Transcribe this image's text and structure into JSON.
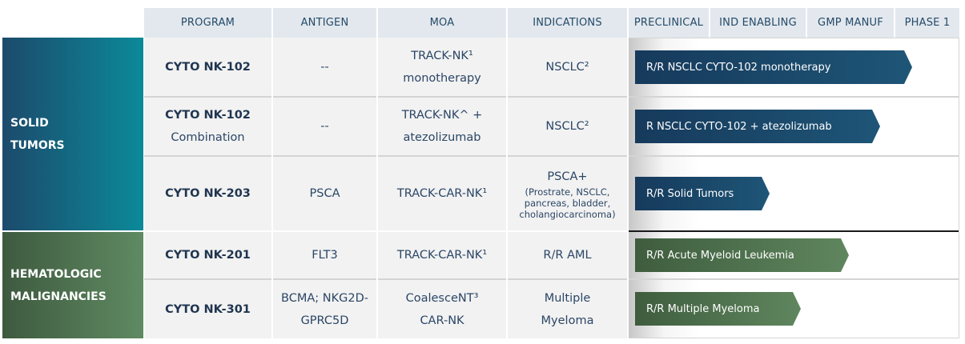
{
  "headers": {
    "program": "PROGRAM",
    "antigen": "ANTIGEN",
    "moa": "MOA",
    "indications": "INDICATIONS",
    "preclinical": "PRECLINICAL",
    "ind_enabling": "IND ENABLING",
    "gmp_manuf": "GMP MANUF",
    "phase1": "PHASE 1"
  },
  "groups": {
    "solid": [
      "SOLID",
      "TUMORS"
    ],
    "heme": [
      "HEMATOLOGIC",
      "MALIGNANCIES"
    ]
  },
  "rows": [
    {
      "program": "CYTO NK-102",
      "program_sub": "",
      "antigen": "--",
      "moa": [
        "TRACK-NK¹",
        "monotherapy"
      ],
      "indication": "NSCLC²",
      "indication_sub": "",
      "bar": "R/R NSCLC CYTO-102 monotherapy"
    },
    {
      "program": "CYTO NK-102",
      "program_sub": "Combination",
      "antigen": "--",
      "moa": [
        "TRACK-NK^ +",
        "atezolizumab"
      ],
      "indication": "NSCLC²",
      "indication_sub": "",
      "bar": "R NSCLC CYTO-102 + atezolizumab"
    },
    {
      "program": "CYTO NK-203",
      "program_sub": "",
      "antigen": "PSCA",
      "moa": [
        "TRACK-CAR-NK¹"
      ],
      "indication": "PSCA+",
      "indication_sub": "(Prostrate, NSCLC, pancreas, bladder, cholangiocarcinoma)",
      "bar": "R/R Solid Tumors"
    },
    {
      "program": "CYTO NK-201",
      "program_sub": "",
      "antigen": "FLT3",
      "moa": [
        "TRACK-CAR-NK¹"
      ],
      "indication": "R/R AML",
      "indication_sub": "",
      "bar": "R/R Acute Myeloid Leukemia"
    },
    {
      "program": "CYTO NK-301",
      "program_sub": "",
      "antigen": [
        "BCMA; NKG2D-",
        "GPRC5D"
      ],
      "moa": [
        "CoalesceNT³",
        "CAR-NK"
      ],
      "indication": [
        "Multiple",
        "Myeloma"
      ],
      "indication_sub": "",
      "bar": "R/R Multiple Myeloma"
    }
  ],
  "colors": {
    "solid_gradient": [
      "#1c4a6c",
      "#0b8a99"
    ],
    "heme_gradient": [
      "#3e5a3f",
      "#5f8a62"
    ],
    "header_bg": "#e2e8ee",
    "row_bg": "#f2f2f2"
  }
}
